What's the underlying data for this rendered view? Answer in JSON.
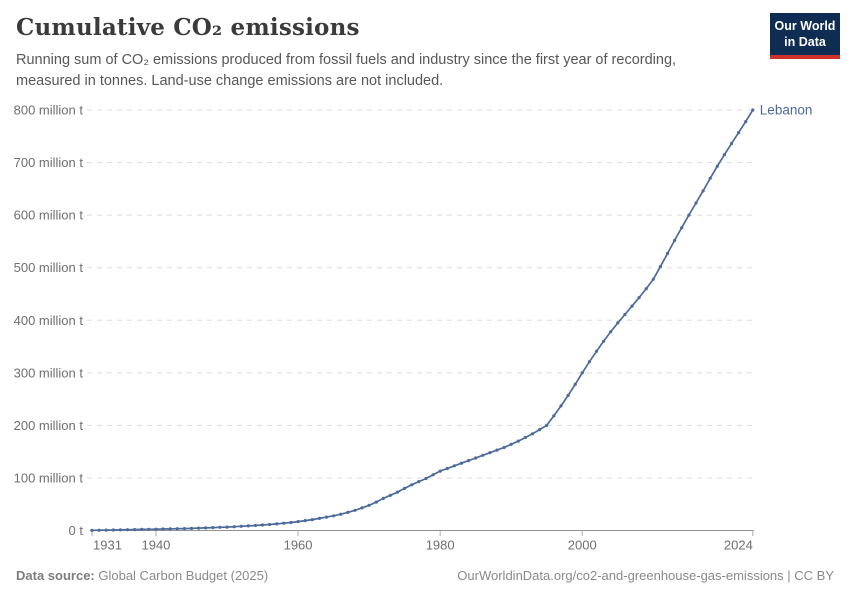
{
  "header": {
    "title": "Cumulative CO₂ emissions",
    "subtitle": "Running sum of CO₂ emissions produced from fossil fuels and industry since the first year of recording, measured in tonnes. Land-use change emissions are not included.",
    "logo": {
      "line1": "Our World",
      "line2": "in Data",
      "bg_color": "#0f2d52",
      "stripe_color": "#cc3227"
    }
  },
  "footer": {
    "source_label": "Data source:",
    "source_text": " Global Carbon Budget (2025)",
    "rights": "OurWorldinData.org/co2-and-greenhouse-gas-emissions | CC BY"
  },
  "chart_data": {
    "type": "line",
    "title": "Cumulative CO₂ emissions",
    "entity": "Lebanon",
    "color": "#4c6a9c",
    "xlabel": "",
    "ylabel": "",
    "unit_suffix": " million t",
    "zero_label": "0 t",
    "ylim": [
      0,
      800
    ],
    "xlim": [
      1931,
      2024
    ],
    "yticks": [
      0,
      100,
      200,
      300,
      400,
      500,
      600,
      700,
      800
    ],
    "xticks": [
      1931,
      1940,
      1960,
      1980,
      2000,
      2024
    ],
    "grid": true,
    "legend_position": "end-of-line-label",
    "x": [
      1931,
      1932,
      1933,
      1934,
      1935,
      1936,
      1937,
      1938,
      1939,
      1940,
      1941,
      1942,
      1943,
      1944,
      1945,
      1946,
      1947,
      1948,
      1949,
      1950,
      1951,
      1952,
      1953,
      1954,
      1955,
      1956,
      1957,
      1958,
      1959,
      1960,
      1961,
      1962,
      1963,
      1964,
      1965,
      1966,
      1967,
      1968,
      1969,
      1970,
      1971,
      1972,
      1973,
      1974,
      1975,
      1976,
      1977,
      1978,
      1979,
      1980,
      1981,
      1982,
      1983,
      1984,
      1985,
      1986,
      1987,
      1988,
      1989,
      1990,
      1991,
      1992,
      1993,
      1994,
      1995,
      1996,
      1997,
      1998,
      1999,
      2000,
      2001,
      2002,
      2003,
      2004,
      2005,
      2006,
      2007,
      2008,
      2009,
      2010,
      2011,
      2012,
      2013,
      2014,
      2015,
      2016,
      2017,
      2018,
      2019,
      2020,
      2021,
      2022,
      2023,
      2024
    ],
    "values": [
      0.2,
      0.5,
      0.7,
      1.0,
      1.2,
      1.5,
      1.7,
      2.0,
      2.2,
      2.5,
      2.8,
      3.1,
      3.4,
      3.7,
      4.0,
      4.5,
      5.0,
      5.5,
      6.0,
      6.5,
      7.2,
      7.9,
      8.7,
      9.5,
      10.4,
      11.4,
      12.5,
      13.8,
      15.3,
      17.0,
      18.8,
      20.8,
      23.0,
      25.4,
      28.0,
      31.0,
      34.5,
      38.5,
      43.0,
      48.0,
      54,
      61,
      67,
      73,
      80,
      87,
      93,
      99,
      106,
      113,
      118,
      123,
      128,
      133,
      138,
      143,
      148,
      153,
      158,
      164,
      170,
      177,
      184,
      192,
      200,
      218,
      237,
      257,
      278,
      300,
      321,
      341,
      360,
      378,
      395,
      411,
      427,
      443,
      460,
      478,
      502,
      527,
      552,
      576,
      600,
      623,
      646,
      670,
      693,
      715,
      736,
      757,
      778,
      800
    ]
  }
}
